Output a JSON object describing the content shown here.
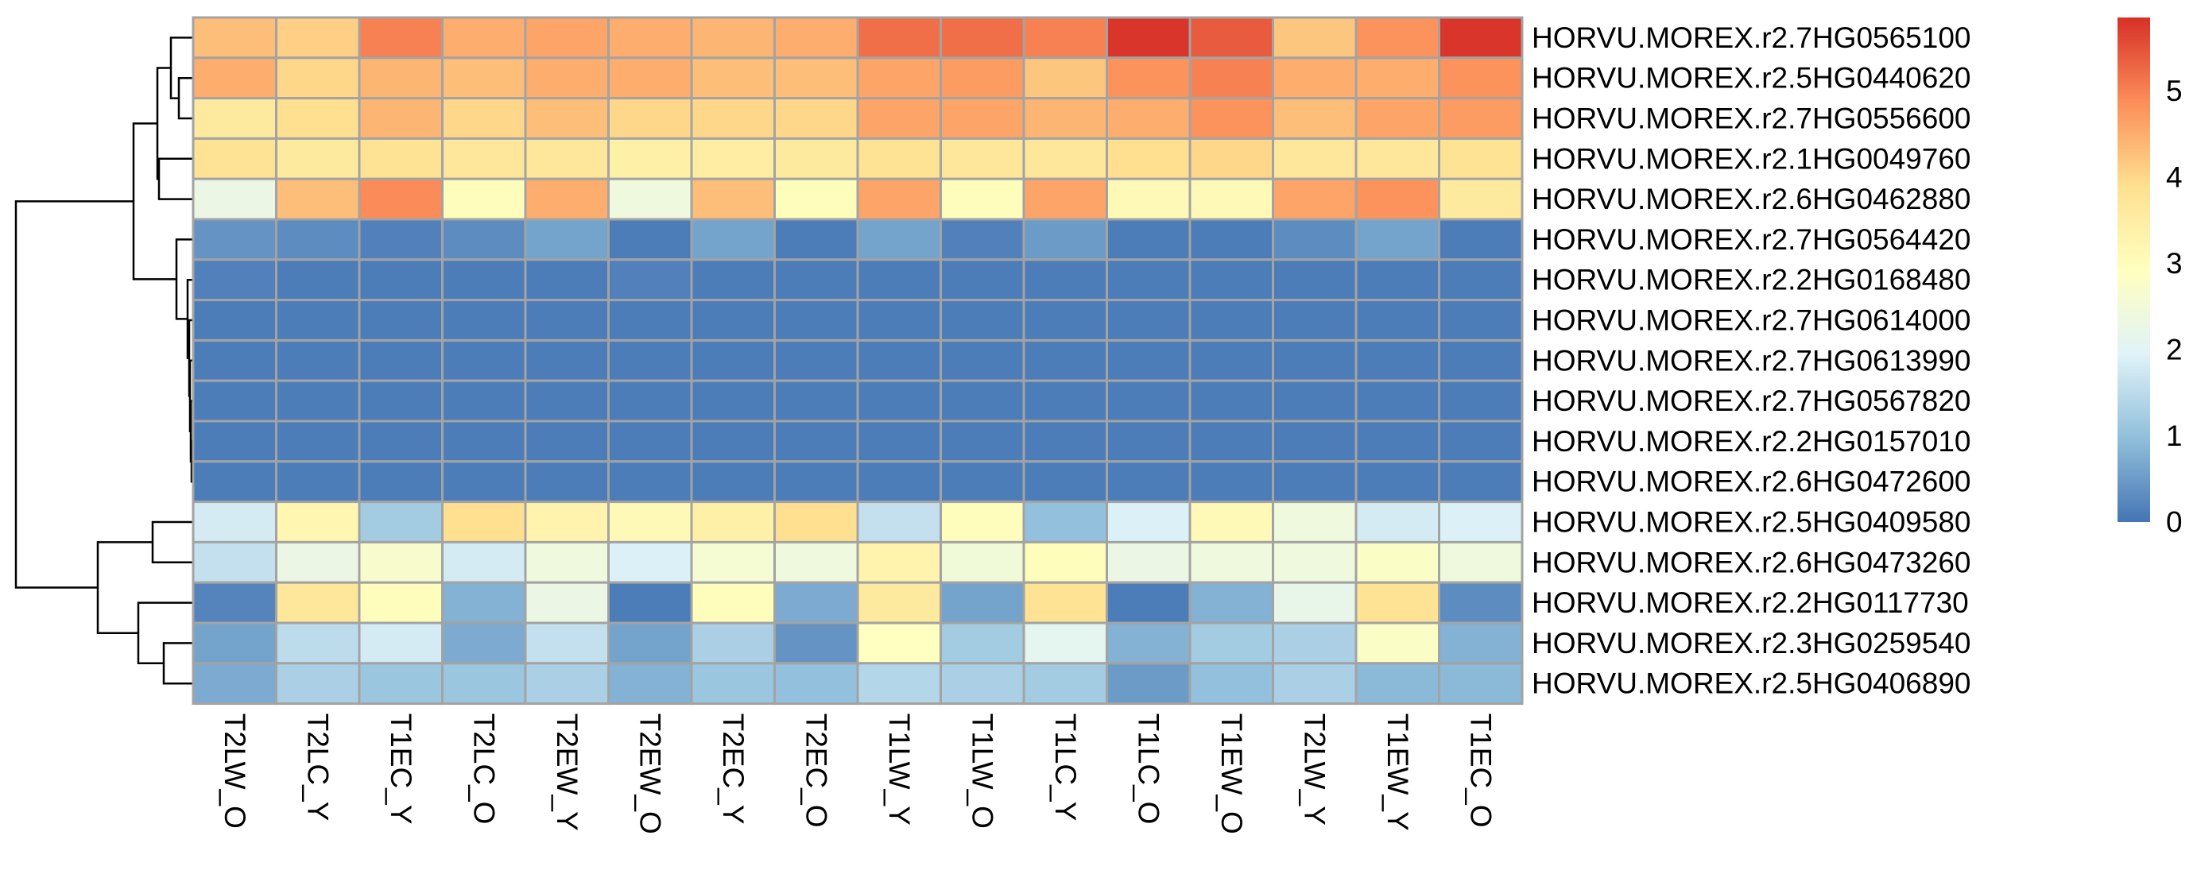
{
  "chart_data": {
    "type": "heatmap",
    "title": "",
    "xlabel": "",
    "ylabel": "",
    "columns": [
      "T2LW_O",
      "T2LC_Y",
      "T1EC_Y",
      "T2LC_O",
      "T2EW_Y",
      "T2EW_O",
      "T2EC_Y",
      "T2EC_O",
      "T1LW_Y",
      "T1LW_O",
      "T1LC_Y",
      "T1LC_O",
      "T1EW_O",
      "T2LW_Y",
      "T1EW_Y",
      "T1EC_O"
    ],
    "rows": [
      "HORVU.MOREX.r2.7HG0565100",
      "HORVU.MOREX.r2.5HG0440620",
      "HORVU.MOREX.r2.7HG0556600",
      "HORVU.MOREX.r2.1HG0049760",
      "HORVU.MOREX.r2.6HG0462880",
      "HORVU.MOREX.r2.7HG0564420",
      "HORVU.MOREX.r2.2HG0168480",
      "HORVU.MOREX.r2.7HG0614000",
      "HORVU.MOREX.r2.7HG0613990",
      "HORVU.MOREX.r2.7HG0567820",
      "HORVU.MOREX.r2.2HG0157010",
      "HORVU.MOREX.r2.6HG0472600",
      "HORVU.MOREX.r2.5HG0409580",
      "HORVU.MOREX.r2.6HG0473260",
      "HORVU.MOREX.r2.2HG0117730",
      "HORVU.MOREX.r2.3HG0259540",
      "HORVU.MOREX.r2.5HG0406890"
    ],
    "values": [
      [
        4.3,
        4.1,
        5.0,
        4.5,
        4.6,
        4.5,
        4.4,
        4.5,
        5.2,
        5.2,
        5.0,
        5.8,
        5.4,
        4.2,
        4.8,
        5.8
      ],
      [
        4.5,
        4.0,
        4.4,
        4.3,
        4.5,
        4.5,
        4.3,
        4.3,
        4.6,
        4.7,
        4.2,
        4.8,
        5.0,
        4.5,
        4.5,
        4.8
      ],
      [
        3.6,
        3.9,
        4.4,
        4.0,
        4.3,
        4.0,
        4.0,
        4.0,
        4.6,
        4.6,
        4.4,
        4.5,
        4.8,
        4.3,
        4.6,
        4.7
      ],
      [
        3.8,
        3.6,
        3.8,
        3.7,
        3.7,
        3.4,
        3.5,
        3.6,
        3.8,
        3.7,
        3.7,
        3.9,
        4.0,
        3.7,
        3.7,
        3.8
      ],
      [
        2.3,
        4.3,
        4.9,
        3.0,
        4.5,
        2.4,
        4.3,
        3.0,
        4.6,
        3.0,
        4.6,
        3.1,
        3.1,
        4.6,
        4.8,
        3.6
      ],
      [
        0.4,
        0.3,
        0.15,
        0.3,
        0.6,
        0.1,
        0.6,
        0.1,
        0.6,
        0.15,
        0.5,
        0.1,
        0.1,
        0.3,
        0.6,
        0.1
      ],
      [
        0.15,
        0.1,
        0.1,
        0.1,
        0.1,
        0.15,
        0.1,
        0.1,
        0.1,
        0.1,
        0.1,
        0.1,
        0.1,
        0.1,
        0.1,
        0.1
      ],
      [
        0.1,
        0.1,
        0.1,
        0.1,
        0.1,
        0.1,
        0.1,
        0.1,
        0.1,
        0.1,
        0.1,
        0.1,
        0.1,
        0.1,
        0.1,
        0.1
      ],
      [
        0.1,
        0.1,
        0.1,
        0.1,
        0.1,
        0.1,
        0.1,
        0.1,
        0.1,
        0.1,
        0.1,
        0.1,
        0.1,
        0.1,
        0.1,
        0.1
      ],
      [
        0.1,
        0.1,
        0.1,
        0.1,
        0.1,
        0.1,
        0.1,
        0.1,
        0.1,
        0.1,
        0.1,
        0.1,
        0.1,
        0.1,
        0.1,
        0.1
      ],
      [
        0.1,
        0.1,
        0.1,
        0.1,
        0.1,
        0.1,
        0.1,
        0.1,
        0.1,
        0.1,
        0.1,
        0.1,
        0.1,
        0.1,
        0.1,
        0.1
      ],
      [
        0.1,
        0.1,
        0.1,
        0.1,
        0.1,
        0.1,
        0.1,
        0.1,
        0.1,
        0.1,
        0.1,
        0.1,
        0.1,
        0.1,
        0.1,
        0.1
      ],
      [
        1.8,
        3.2,
        1.2,
        3.9,
        3.3,
        3.1,
        3.4,
        3.9,
        1.6,
        3.0,
        1.0,
        1.9,
        3.1,
        2.4,
        1.8,
        1.9
      ],
      [
        1.6,
        2.3,
        2.7,
        1.8,
        2.4,
        1.9,
        2.6,
        2.4,
        3.3,
        2.5,
        3.0,
        2.3,
        2.4,
        2.4,
        2.8,
        2.4
      ],
      [
        0.2,
        3.7,
        3.0,
        0.8,
        2.3,
        0.1,
        3.0,
        0.7,
        3.6,
        0.6,
        3.8,
        0.1,
        0.8,
        2.2,
        3.8,
        0.3
      ],
      [
        0.6,
        1.5,
        1.8,
        0.7,
        1.6,
        0.6,
        1.3,
        0.4,
        2.9,
        1.2,
        2.1,
        0.8,
        1.2,
        1.3,
        2.8,
        0.8
      ],
      [
        0.7,
        1.3,
        1.1,
        1.1,
        1.3,
        0.8,
        1.1,
        1.0,
        1.4,
        1.3,
        1.2,
        0.5,
        1.0,
        1.3,
        0.9,
        0.9
      ]
    ],
    "color_scale": {
      "min": 0,
      "max": 5.85,
      "colors": [
        "#4575b4",
        "#91bfdb",
        "#e0f3f8",
        "#ffffbf",
        "#fee090",
        "#fc8d59",
        "#d73027"
      ]
    },
    "legend": {
      "ticks": [
        0,
        1,
        2,
        3,
        4,
        5
      ],
      "tick_labels": [
        "0",
        "1",
        "2",
        "3",
        "4",
        "5"
      ],
      "placement": "right"
    },
    "row_dendrogram": true,
    "grid": true
  }
}
